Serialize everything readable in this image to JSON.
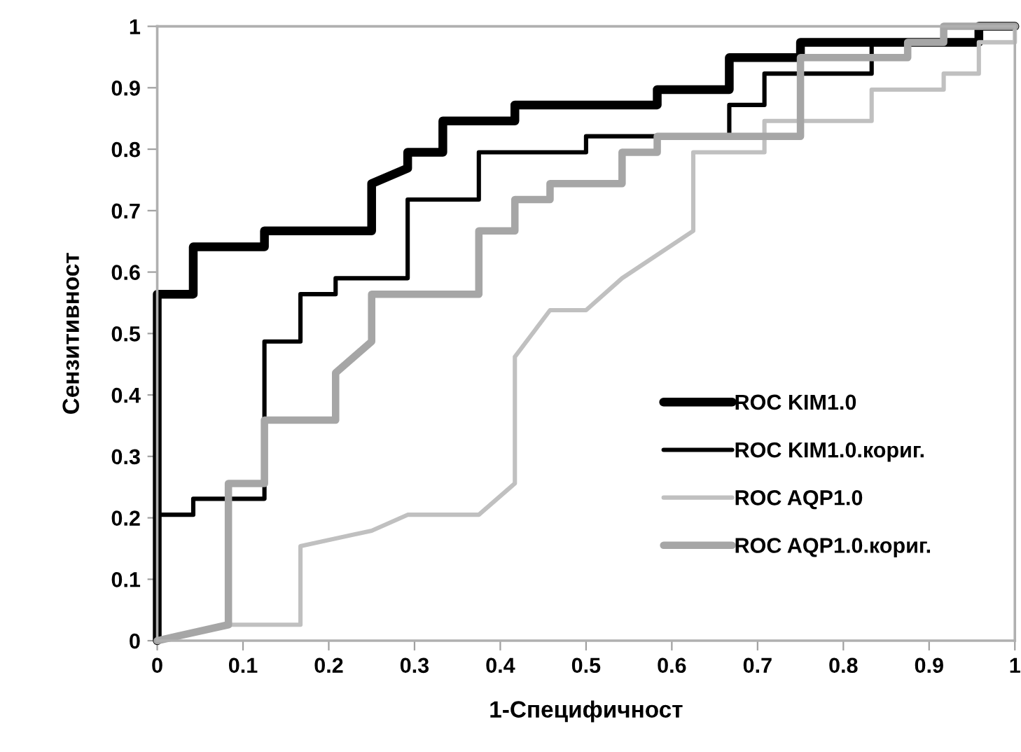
{
  "chart_data": {
    "type": "line",
    "xlabel": "1-Специфичност",
    "ylabel": "Сензитивност",
    "xlim": [
      0,
      1
    ],
    "ylim": [
      0,
      1
    ],
    "xticks": [
      0,
      0.1,
      0.2,
      0.3,
      0.4,
      0.5,
      0.6,
      0.7,
      0.8,
      0.9,
      1
    ],
    "yticks": [
      0,
      0.1,
      0.2,
      0.3,
      0.4,
      0.5,
      0.6,
      0.7,
      0.8,
      0.9,
      1
    ],
    "grid": false,
    "legend": "lower right",
    "marker": "none",
    "line_style": "solid",
    "series": [
      {
        "name": "ROC KIM1.0",
        "color": "#000000",
        "x": [
          0,
          0,
          0.042,
          0.042,
          0.125,
          0.125,
          0.25,
          0.25,
          0.292,
          0.292,
          0.333,
          0.333,
          0.417,
          0.417,
          0.583,
          0.583,
          0.667,
          0.667,
          0.75,
          0.75,
          0.958,
          0.958,
          1
        ],
        "values": [
          0,
          0.564,
          0.564,
          0.641,
          0.641,
          0.667,
          0.667,
          0.744,
          0.769,
          0.795,
          0.795,
          0.846,
          0.846,
          0.872,
          0.872,
          0.897,
          0.897,
          0.949,
          0.949,
          0.974,
          0.974,
          1,
          1
        ]
      },
      {
        "name": "ROC KIM1.0.кориг.",
        "color": "#000000",
        "x": [
          0,
          0,
          0.042,
          0.042,
          0.125,
          0.125,
          0.167,
          0.167,
          0.208,
          0.208,
          0.292,
          0.292,
          0.375,
          0.375,
          0.5,
          0.5,
          0.667,
          0.667,
          0.708,
          0.708,
          0.833,
          0.833,
          0.958,
          0.958,
          1
        ],
        "values": [
          0,
          0.205,
          0.205,
          0.231,
          0.231,
          0.487,
          0.487,
          0.564,
          0.564,
          0.59,
          0.59,
          0.718,
          0.718,
          0.795,
          0.795,
          0.821,
          0.821,
          0.872,
          0.872,
          0.923,
          0.923,
          0.974,
          0.974,
          1,
          1
        ]
      },
      {
        "name": "ROC AQP1.0",
        "color": "#c0c0c0",
        "x": [
          0,
          0.083,
          0.167,
          0.167,
          0.25,
          0.292,
          0.375,
          0.417,
          0.417,
          0.458,
          0.5,
          0.542,
          0.625,
          0.625,
          0.708,
          0.708,
          0.833,
          0.833,
          0.917,
          0.917,
          0.958,
          0.958,
          1,
          1
        ],
        "values": [
          0,
          0.026,
          0.026,
          0.154,
          0.179,
          0.205,
          0.205,
          0.256,
          0.462,
          0.538,
          0.538,
          0.59,
          0.667,
          0.795,
          0.795,
          0.846,
          0.846,
          0.897,
          0.897,
          0.923,
          0.923,
          0.974,
          0.974,
          1
        ]
      },
      {
        "name": "ROC AQP1.0.кориг.",
        "color": "#a6a6a6",
        "x": [
          0,
          0.083,
          0.083,
          0.125,
          0.125,
          0.208,
          0.208,
          0.25,
          0.25,
          0.375,
          0.375,
          0.417,
          0.417,
          0.458,
          0.458,
          0.542,
          0.542,
          0.583,
          0.583,
          0.75,
          0.75,
          0.875,
          0.875,
          0.917,
          0.917,
          1
        ],
        "values": [
          0,
          0.026,
          0.256,
          0.256,
          0.359,
          0.359,
          0.436,
          0.487,
          0.564,
          0.564,
          0.667,
          0.667,
          0.718,
          0.718,
          0.744,
          0.744,
          0.795,
          0.795,
          0.821,
          0.821,
          0.949,
          0.949,
          0.974,
          0.974,
          1,
          1
        ]
      }
    ]
  }
}
